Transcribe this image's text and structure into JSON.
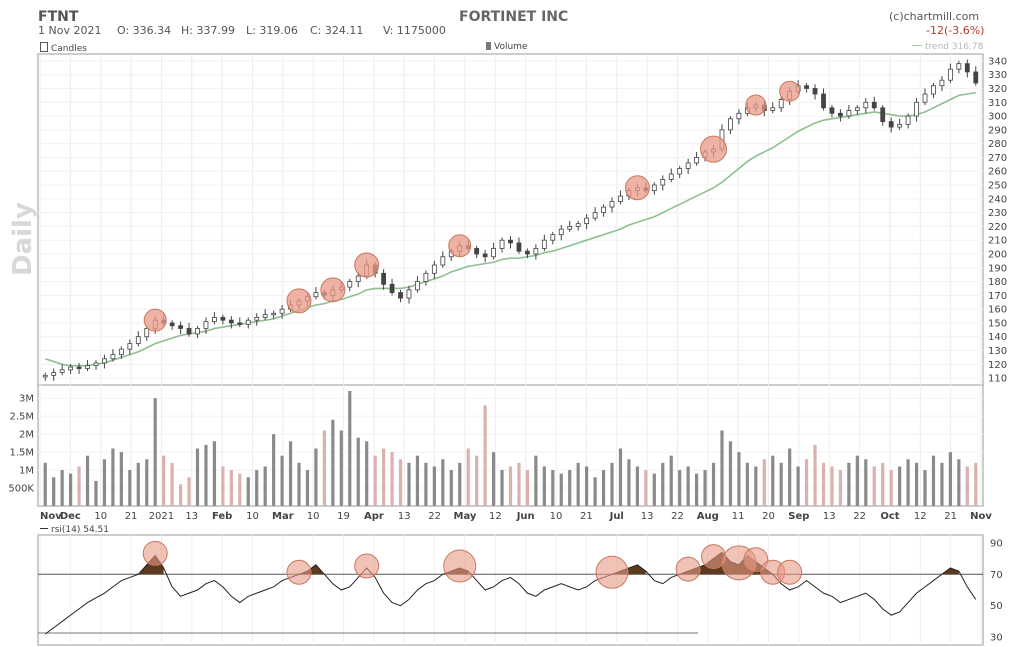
{
  "header": {
    "ticker": "FTNT",
    "company": "FORTINET INC",
    "source": "(c)chartmill.com",
    "date": "1 Nov 2021",
    "open": "O: 336.34",
    "high": "H: 337.99",
    "low": "L: 319.06",
    "close": "C: 324.11",
    "volume": "V: 1175000",
    "change": "-12(-3.6%)",
    "trend_label": "trend 316.78",
    "period": "Daily"
  },
  "legend": {
    "candles": "Candles",
    "volume": "Volume",
    "rsi": "rsi(14) 54.51"
  },
  "colors": {
    "up": "#444444",
    "down": "#b9827a",
    "trend": "#8fbf8f",
    "volume_down": "#d9b2ad",
    "volume_up": "#8a8a8a",
    "highlight": "#e89a86",
    "rsi_fill": "#5b3a1e"
  },
  "chart_data": [
    {
      "type": "line",
      "title": "FORTINET INC",
      "ylabel": "",
      "ylim": [
        105,
        345
      ],
      "yticks": [
        110,
        120,
        130,
        140,
        150,
        160,
        170,
        180,
        190,
        200,
        210,
        220,
        230,
        240,
        250,
        260,
        270,
        280,
        290,
        300,
        310,
        320,
        330,
        340
      ],
      "x_labels": [
        "Nov",
        "Dec",
        "10",
        "21",
        "2021",
        "13",
        "Feb",
        "10",
        "Mar",
        "10",
        "19",
        "Apr",
        "13",
        "22",
        "May",
        "12",
        "Jun",
        "10",
        "21",
        "Jul",
        "13",
        "22",
        "Aug",
        "11",
        "20",
        "Sep",
        "13",
        "22",
        "Oct",
        "12",
        "21",
        "Nov"
      ],
      "series": [
        {
          "name": "Candles",
          "values": [
            112,
            114,
            116,
            118,
            117,
            119,
            121,
            124,
            127,
            131,
            135,
            140,
            146,
            152,
            150,
            148,
            146,
            142,
            146,
            151,
            154,
            152,
            150,
            149,
            152,
            154,
            156,
            157,
            160,
            163,
            166,
            169,
            172,
            170,
            174,
            176,
            180,
            184,
            192,
            186,
            178,
            172,
            168,
            174,
            180,
            186,
            192,
            198,
            202,
            206,
            204,
            200,
            198,
            204,
            210,
            208,
            202,
            200,
            204,
            210,
            214,
            218,
            220,
            222,
            226,
            230,
            234,
            238,
            242,
            246,
            248,
            246,
            250,
            254,
            258,
            262,
            266,
            270,
            274,
            276,
            290,
            298,
            302,
            306,
            308,
            304,
            306,
            312,
            318,
            322,
            320,
            316,
            306,
            302,
            300,
            304,
            306,
            310,
            306,
            296,
            292,
            294,
            300,
            310,
            316,
            322,
            326,
            334,
            338,
            332,
            324
          ]
        },
        {
          "name": "trend 316.78",
          "values": [
            124,
            122,
            120,
            119,
            119,
            119,
            120,
            121,
            123,
            125,
            127,
            129,
            132,
            135,
            137,
            139,
            141,
            142,
            143,
            144,
            146,
            147,
            148,
            149,
            150,
            151,
            152,
            153,
            155,
            157,
            159,
            161,
            163,
            164,
            166,
            167,
            169,
            171,
            174,
            175,
            175,
            175,
            175,
            176,
            178,
            180,
            182,
            184,
            187,
            189,
            191,
            192,
            193,
            194,
            196,
            197,
            197,
            198,
            199,
            201,
            202,
            204,
            206,
            208,
            210,
            212,
            214,
            216,
            218,
            221,
            223,
            225,
            227,
            230,
            233,
            236,
            239,
            242,
            245,
            248,
            252,
            257,
            262,
            267,
            271,
            274,
            277,
            281,
            285,
            289,
            292,
            295,
            297,
            298,
            299,
            300,
            301,
            302,
            303,
            302,
            301,
            300,
            300,
            301,
            303,
            306,
            309,
            312,
            315,
            316,
            317
          ]
        }
      ]
    },
    {
      "type": "bar",
      "title": "Volume",
      "ylim": [
        0,
        3200000
      ],
      "yticks": [
        "500K",
        "1M",
        "1.5M",
        "2M",
        "2.5M",
        "3M"
      ],
      "series": [
        {
          "name": "Volume",
          "values": [
            1.2,
            0.8,
            1.0,
            0.9,
            1.1,
            1.4,
            0.7,
            1.3,
            1.6,
            1.5,
            1.0,
            1.2,
            1.3,
            3.0,
            1.4,
            1.2,
            0.6,
            0.8,
            1.6,
            1.7,
            1.8,
            1.1,
            1.0,
            0.9,
            0.8,
            1.0,
            1.1,
            2.0,
            1.4,
            1.8,
            1.2,
            1.0,
            1.6,
            2.1,
            2.4,
            2.1,
            3.2,
            1.9,
            1.8,
            1.4,
            1.6,
            1.5,
            1.3,
            1.2,
            1.4,
            1.2,
            1.1,
            1.3,
            1.0,
            1.2,
            1.6,
            1.4,
            2.8,
            1.5,
            1.0,
            1.1,
            1.2,
            1.0,
            1.4,
            1.1,
            1.0,
            0.9,
            1.0,
            1.2,
            1.1,
            0.8,
            1.0,
            1.2,
            1.6,
            1.3,
            1.1,
            1.0,
            0.9,
            1.2,
            1.4,
            1.0,
            1.1,
            0.9,
            1.0,
            1.2,
            2.1,
            1.8,
            1.5,
            1.2,
            1.1,
            1.3,
            1.4,
            1.2,
            1.6,
            1.1,
            1.3,
            1.7,
            1.2,
            1.1,
            1.0,
            1.2,
            1.4,
            1.3,
            1.1,
            1.2,
            1.0,
            1.1,
            1.3,
            1.2,
            1.0,
            1.4,
            1.2,
            1.5,
            1.3,
            1.1,
            1.2
          ]
        }
      ]
    },
    {
      "type": "line",
      "title": "rsi(14) 54.51",
      "ylim": [
        25,
        95
      ],
      "yticks": [
        30,
        50,
        70,
        90
      ],
      "reference_line": 70,
      "series": [
        {
          "name": "rsi(14) 54.51",
          "values": [
            32,
            36,
            40,
            44,
            48,
            52,
            55,
            58,
            62,
            66,
            68,
            70,
            76,
            82,
            74,
            62,
            56,
            58,
            60,
            64,
            66,
            62,
            56,
            52,
            56,
            58,
            60,
            62,
            66,
            68,
            70,
            72,
            76,
            70,
            64,
            60,
            62,
            68,
            74,
            68,
            58,
            52,
            50,
            54,
            60,
            64,
            66,
            70,
            72,
            74,
            72,
            66,
            60,
            62,
            66,
            68,
            64,
            58,
            56,
            60,
            62,
            64,
            62,
            60,
            62,
            66,
            68,
            70,
            72,
            74,
            76,
            72,
            66,
            64,
            68,
            70,
            72,
            74,
            76,
            80,
            84,
            78,
            76,
            82,
            78,
            74,
            70,
            64,
            60,
            62,
            66,
            62,
            58,
            56,
            52,
            54,
            56,
            58,
            54,
            48,
            44,
            46,
            52,
            58,
            62,
            66,
            70,
            74,
            72,
            62,
            54
          ]
        }
      ]
    }
  ]
}
